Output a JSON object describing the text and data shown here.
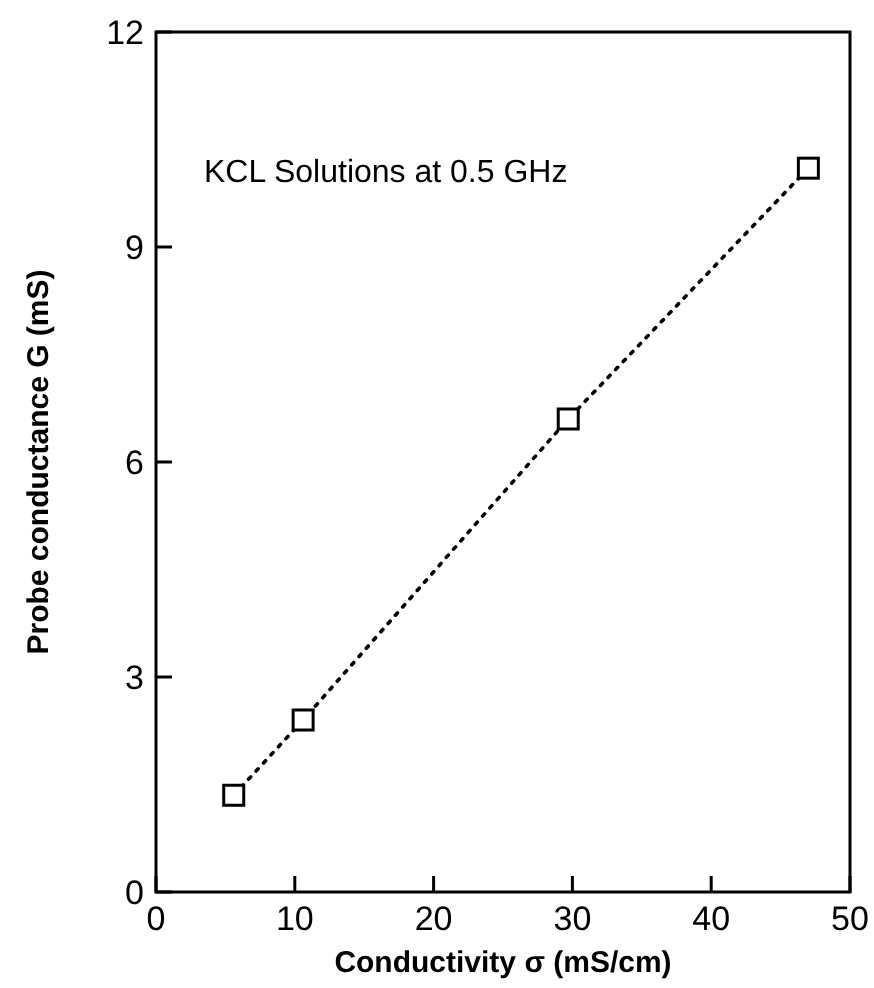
{
  "chart_data": {
    "type": "line",
    "xlabel": "Conductivity σ (mS/cm)",
    "ylabel": "Probe conductance G (mS)",
    "annotations": [
      "KCL Solutions at 0.5 GHz"
    ],
    "x": [
      5.6,
      10.6,
      29.7,
      47
    ],
    "series": [
      {
        "color": "#000000",
        "values": [
          1.35,
          2.4,
          6.6,
          10.1
        ]
      }
    ],
    "xlim": [
      0,
      50
    ],
    "xticks": [
      0,
      10,
      20,
      30,
      40,
      50
    ],
    "ylim": [
      0,
      12
    ],
    "yticks": [
      0,
      3,
      6,
      9,
      12
    ],
    "grid": false,
    "marker": "square",
    "line_style": "dotted"
  }
}
